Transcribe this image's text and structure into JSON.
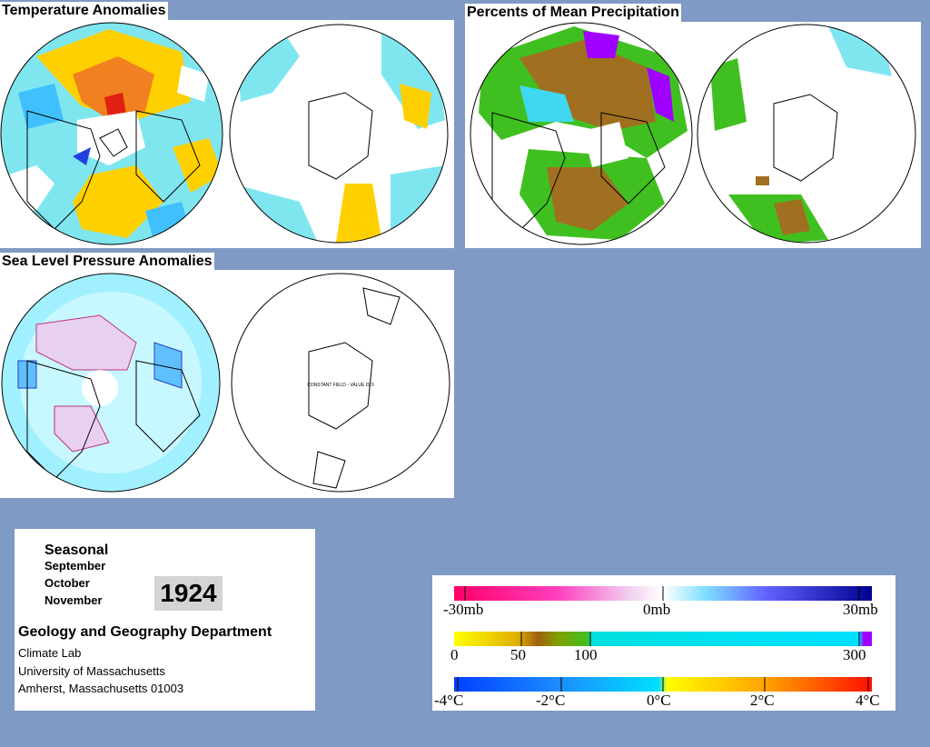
{
  "panels": {
    "temperature": {
      "title": "Temperature Anomalies"
    },
    "precipitation": {
      "title": "Percents of Mean Precipitation"
    },
    "pressure": {
      "title": "Sea Level Pressure Anomalies",
      "south_map_note": "CONSTANT FIELD - VALUE IS 0"
    }
  },
  "info": {
    "season": "Seasonal",
    "months": [
      "September",
      "October",
      "November"
    ],
    "year": "1924",
    "department": "Geology and Geography Department",
    "lines": [
      "Climate Lab",
      "University of Massachusetts",
      "Amherst, Massachusetts 01003"
    ]
  },
  "legend": {
    "pressure": {
      "labels": [
        "-30mb",
        "0mb",
        "30mb"
      ],
      "colors": [
        "#ff0066",
        "#ff4db8",
        "#e080e0",
        "#f0d0f0",
        "#ffffff",
        "#a0f0ff",
        "#40c0ff",
        "#4040ff",
        "#0000e0",
        "#000090"
      ]
    },
    "precip": {
      "labels": [
        "0",
        "50",
        "100",
        "300"
      ],
      "colors": [
        "#ffff00",
        "#e0c000",
        "#a06000",
        "#80a000",
        "#40c020",
        "#00e0e0",
        "#00e0ff",
        "#a000ff"
      ]
    },
    "temperature": {
      "labels": [
        "-4°C",
        "-2°C",
        "0°C",
        "2°C",
        "4°C"
      ],
      "colors": [
        "#0040ff",
        "#1c8cff",
        "#40c0ff",
        "#00e0ff",
        "#ffff00",
        "#ffc000",
        "#ff8000",
        "#ff2000"
      ]
    }
  }
}
